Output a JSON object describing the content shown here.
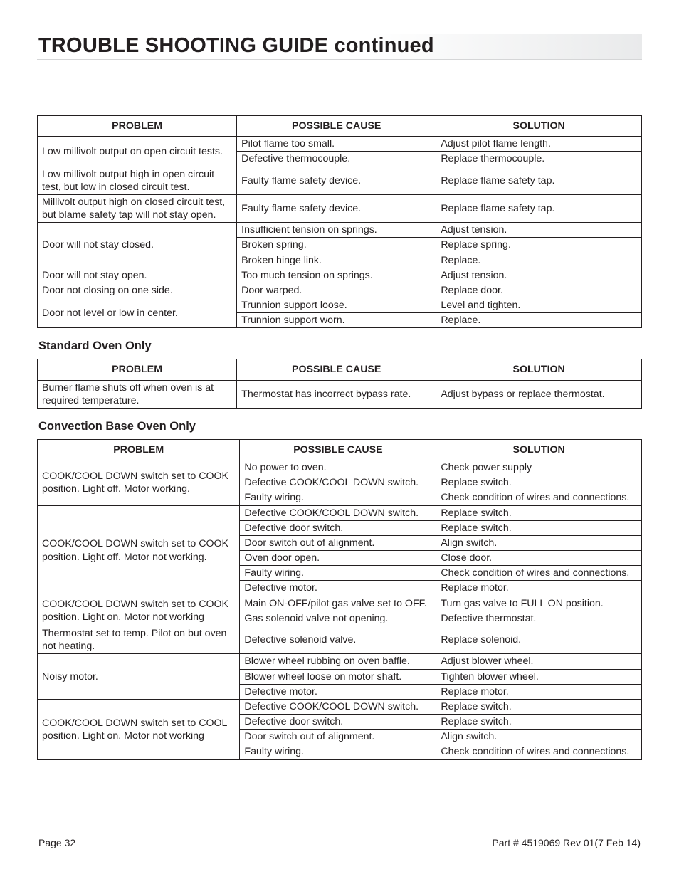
{
  "title": "TROUBLE SHOOTING GUIDE continued",
  "headers": {
    "problem": "PROBLEM",
    "cause": "POSSIBLE CAUSE",
    "solution": "SOLUTION"
  },
  "section1_heading": "Standard Oven Only",
  "section2_heading": "Convection Base Oven Only",
  "t1": {
    "r1p": "Low millivolt output on open circuit tests.",
    "r1c1": "Pilot flame too small.",
    "r1s1": "Adjust pilot flame length.",
    "r1c2": "Defective thermocouple.",
    "r1s2": "Replace thermocouple.",
    "r2p": "Low millivolt output high in open circuit test, but low in closed circuit test.",
    "r2c": "Faulty flame safety device.",
    "r2s": "Replace flame safety tap.",
    "r3p": "Millivolt output high on closed circuit test, but blame safety tap will not stay open.",
    "r3c": "Faulty flame safety device.",
    "r3s": "Replace flame safety tap.",
    "r4p": "Door will not stay closed.",
    "r4c1": "Insufficient tension on springs.",
    "r4s1": "Adjust tension.",
    "r4c2": "Broken spring.",
    "r4s2": "Replace spring.",
    "r4c3": "Broken hinge link.",
    "r4s3": "Replace.",
    "r5p": "Door will not stay open.",
    "r5c": "Too much tension on springs.",
    "r5s": "Adjust tension.",
    "r6p": "Door not closing on one side.",
    "r6c": "Door warped.",
    "r6s": "Replace door.",
    "r7p": "Door not level or low in center.",
    "r7c1": "Trunnion support loose.",
    "r7s1": "Level and tighten.",
    "r7c2": "Trunnion support worn.",
    "r7s2": "Replace."
  },
  "t2": {
    "r1p": "Burner flame shuts off when oven is at required temperature.",
    "r1c": "Thermostat has incorrect bypass rate.",
    "r1s": "Adjust bypass or replace thermostat."
  },
  "t3": {
    "r1p": "COOK/COOL DOWN switch set to COOK position. Light off. Motor working.",
    "r1c1": "No power to oven.",
    "r1s1": "Check power supply",
    "r1c2": "Defective COOK/COOL DOWN switch.",
    "r1s2": "Replace switch.",
    "r1c3": "Faulty wiring.",
    "r1s3": "Check condition of wires and connections.",
    "r2p": "COOK/COOL DOWN switch set to COOK position. Light off. Motor not working.",
    "r2c1": "Defective COOK/COOL DOWN switch.",
    "r2s1": "Replace switch.",
    "r2c2": "Defective door switch.",
    "r2s2": "Replace switch.",
    "r2c3": "Door switch out of alignment.",
    "r2s3": "Align switch.",
    "r2c4": "Oven door open.",
    "r2s4": "Close door.",
    "r2c5": "Faulty wiring.",
    "r2s5": "Check condition of wires and connections.",
    "r2c6": "Defective motor.",
    "r2s6": "Replace motor.",
    "r3p": "COOK/COOL DOWN switch set to COOK position. Light on. Motor not working",
    "r3c1": "Main ON-OFF/pilot gas valve set to OFF.",
    "r3s1": "Turn gas valve to FULL ON position.",
    "r3c2": "Gas solenoid valve not opening.",
    "r3s2": "Defective thermostat.",
    "r4p": "Thermostat set to temp. Pilot on but oven not heating.",
    "r4c": "Defective solenoid valve.",
    "r4s": "Replace solenoid.",
    "r5p": "Noisy motor.",
    "r5c1": "Blower wheel rubbing on oven baffle.",
    "r5s1": "Adjust blower wheel.",
    "r5c2": "Blower wheel loose on motor shaft.",
    "r5s2": "Tighten blower wheel.",
    "r5c3": "Defective motor.",
    "r5s3": "Replace motor.",
    "r6p": "COOK/COOL DOWN switch set to COOL position. Light on. Motor not working",
    "r6c1": "Defective COOK/COOL DOWN switch.",
    "r6s1": "Replace switch.",
    "r6c2": "Defective door switch.",
    "r6s2": "Replace switch.",
    "r6c3": "Door switch out of alignment.",
    "r6s3": "Align switch.",
    "r6c4": "Faulty wiring.",
    "r6s4": "Check condition of wires and connections."
  },
  "footer": {
    "left": "Page 32",
    "right": "Part # 4519069 Rev 01(7 Feb 14)"
  }
}
